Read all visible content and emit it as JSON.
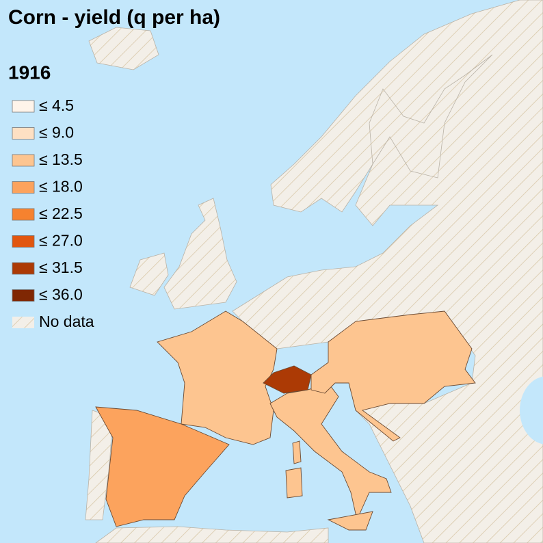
{
  "title": "Corn - yield (q per ha)",
  "year": "1916",
  "legend": [
    {
      "label": "≤ 4.5",
      "color": "#fef4ea"
    },
    {
      "label": "≤ 9.0",
      "color": "#fee0c3"
    },
    {
      "label": "≤ 13.5",
      "color": "#fdc590"
    },
    {
      "label": "≤ 18.0",
      "color": "#fca35d"
    },
    {
      "label": "≤ 22.5",
      "color": "#f6822f"
    },
    {
      "label": "≤ 27.0",
      "color": "#e1560f"
    },
    {
      "label": "≤ 31.5",
      "color": "#ac3a05"
    },
    {
      "label": "≤ 36.0",
      "color": "#7f2703"
    }
  ],
  "no_data": "No data"
}
